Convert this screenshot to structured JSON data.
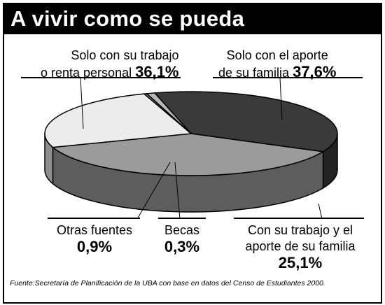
{
  "title": "A vivir como se pueda",
  "source": "Fuente:Secretaría de Planificación de la UBA con base en datos del Censo de Estudiantes 2000.",
  "chart_data": {
    "type": "pie",
    "title": "A vivir como se pueda",
    "slices": [
      {
        "label_lines": [
          "Solo con su trabajo",
          "o renta personal"
        ],
        "value_label": "36,1%",
        "value": 36.1,
        "color": "#3a3a3a"
      },
      {
        "label_lines": [
          "Solo con el aporte",
          "de su familia"
        ],
        "value_label": "37,6%",
        "value": 37.6,
        "color": "#9b9b9b"
      },
      {
        "label_lines": [
          "Con su trabajo y el",
          "aporte de su familia"
        ],
        "value_label": "25,1%",
        "value": 25.1,
        "color": "#ececec"
      },
      {
        "label_lines": [
          "Becas"
        ],
        "value_label": "0,3%",
        "value": 0.3,
        "color": "#8c8c8c"
      },
      {
        "label_lines": [
          "Otras fuentes"
        ],
        "value_label": "0,9%",
        "value": 0.9,
        "color": "#b8b8b8"
      }
    ]
  }
}
